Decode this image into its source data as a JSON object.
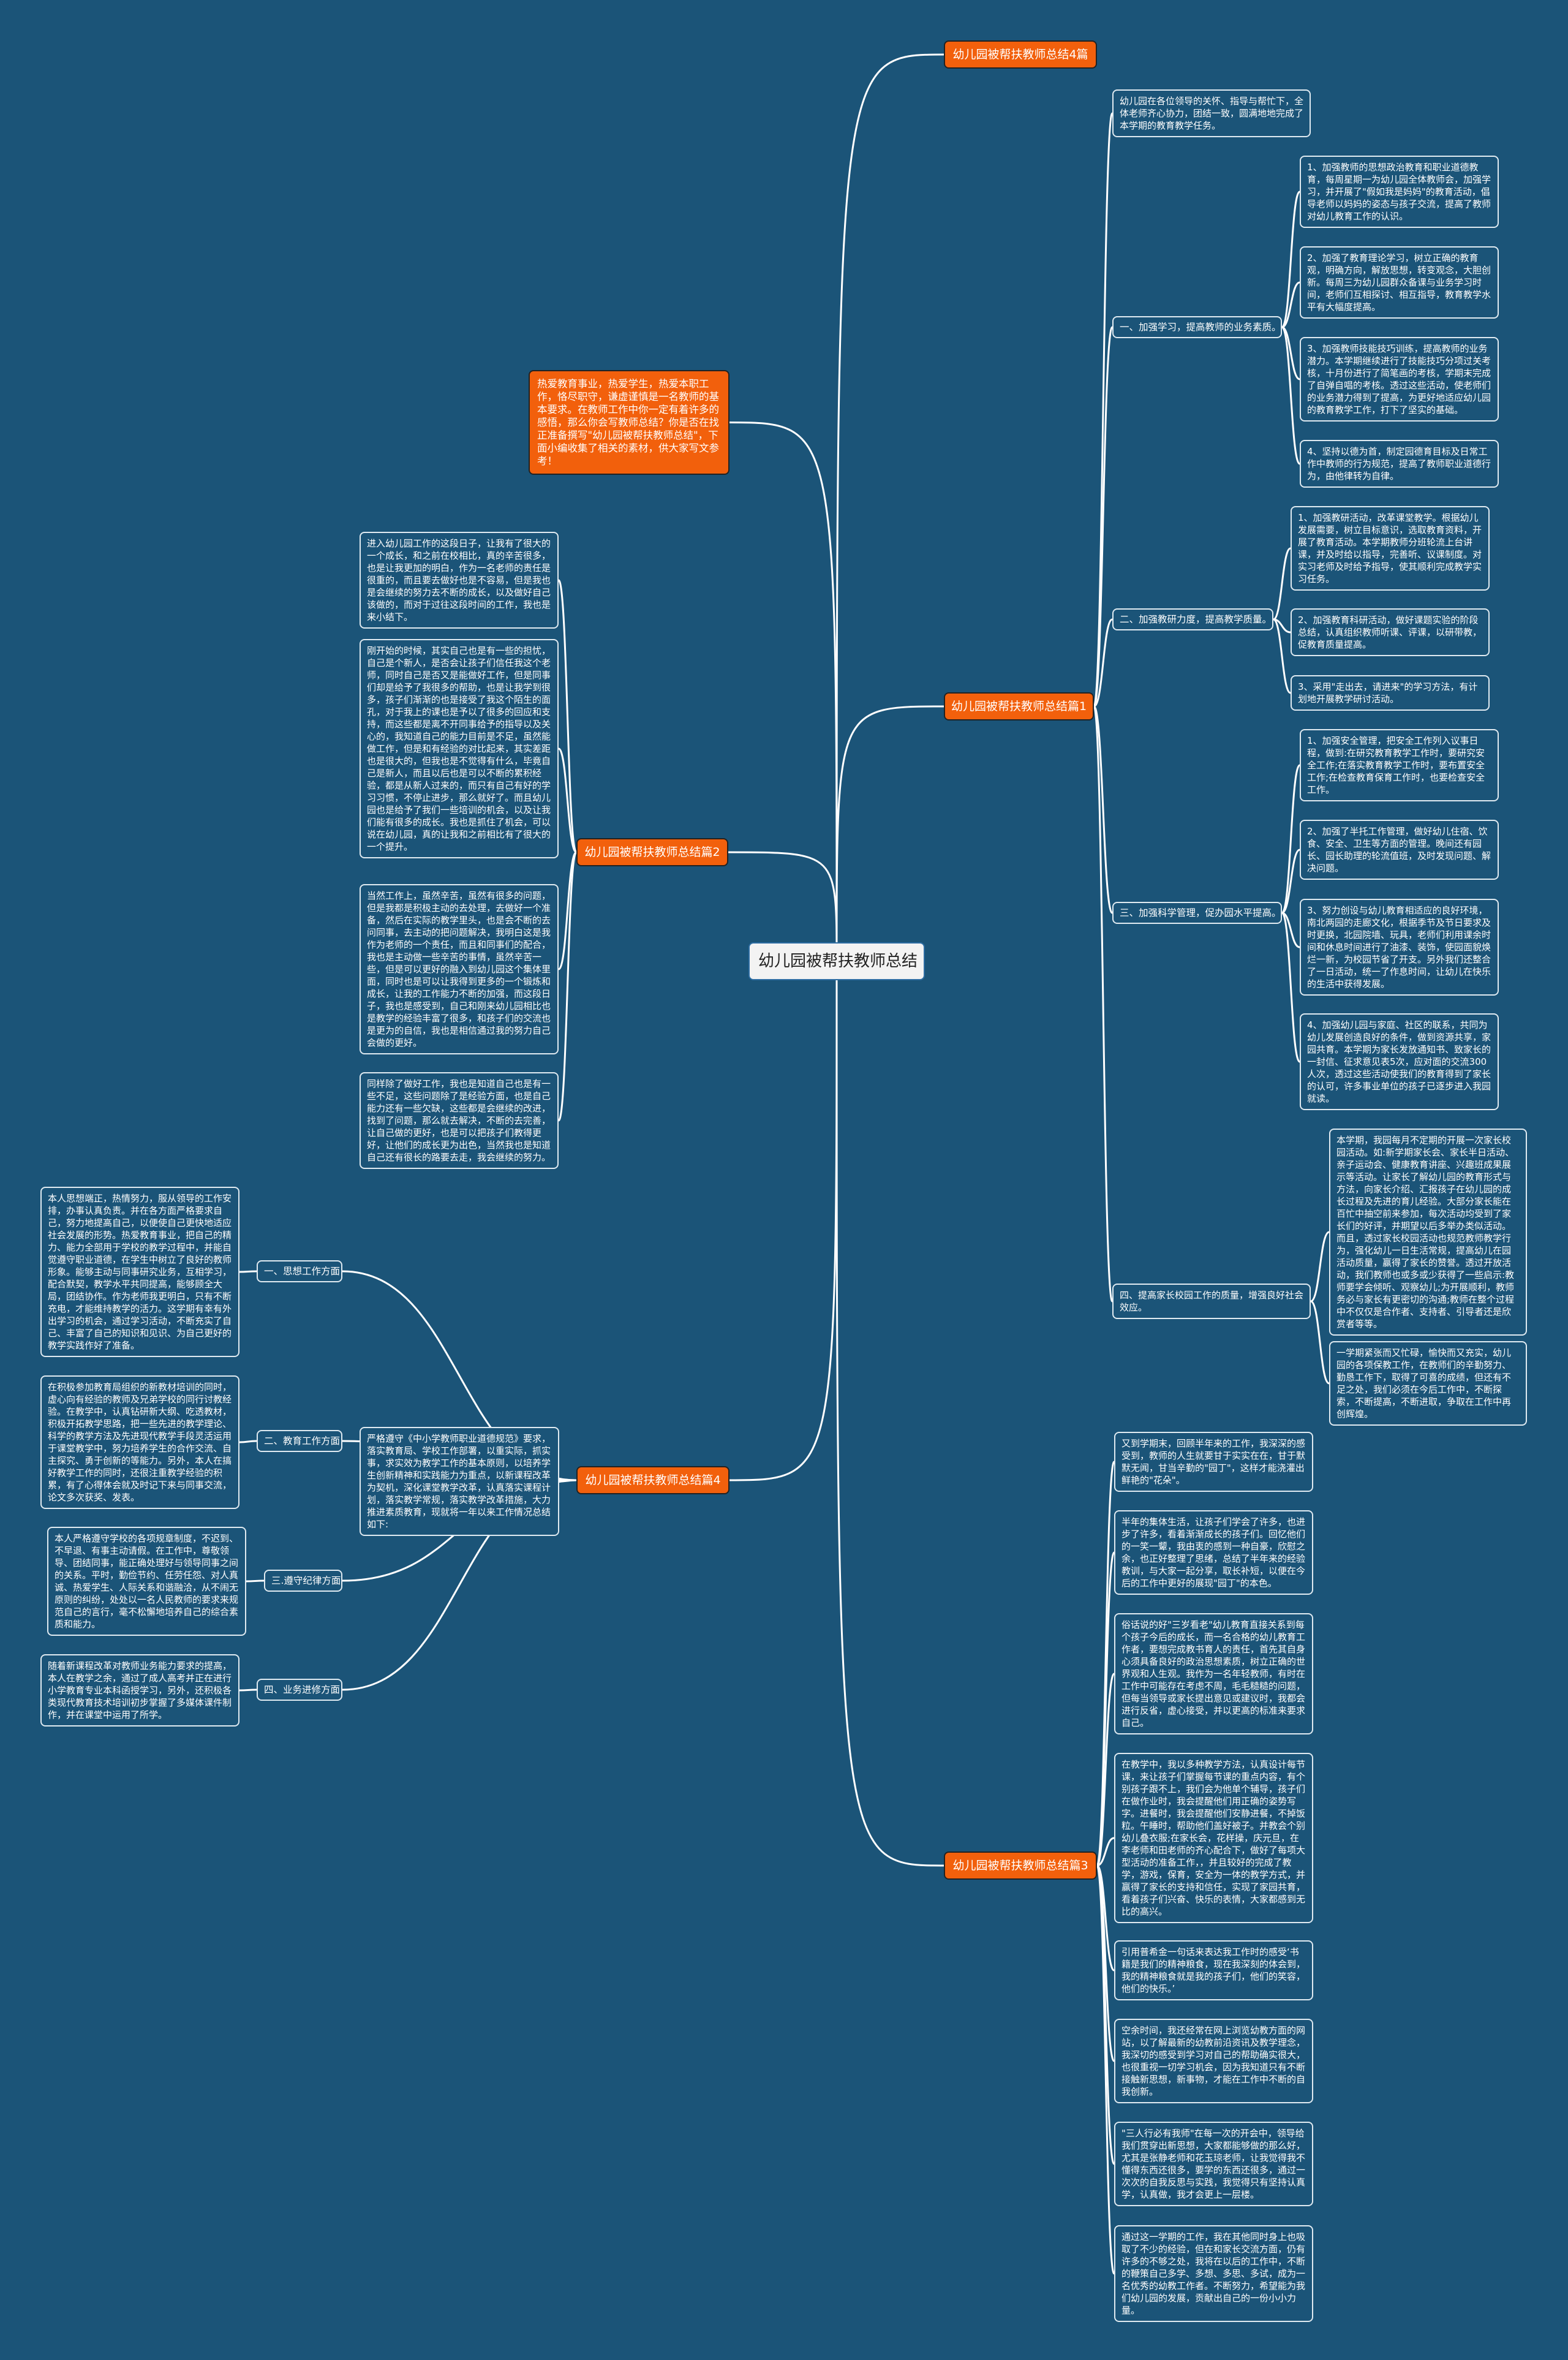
{
  "root": "幼儿园被帮扶教师总结",
  "intro": "热爱教育事业，热爱学生，热爱本职工作，恪尽职守，谦虚谨慎是一名教师的基本要求。在教师工作中你一定有着许多的感悟，那么你会写教师总结？你是否在找正准备撰写\"幼儿园被帮扶教师总结\"，下面小编收集了相关的素材，供大家写文参考！",
  "colors": {
    "background": "#1b5478",
    "branch": "#f2600c",
    "root": "#f3f3f3",
    "line": "#ffffff"
  },
  "b4pian": {
    "title": "幼儿园被帮扶教师总结4篇"
  },
  "p1": {
    "title": "幼儿园被帮扶教师总结篇1",
    "intro": "幼儿园在各位领导的关怀、指导与帮忙下，全体老师齐心协力，团结一致，圆满地地完成了本学期的教育教学任务。",
    "sections": [
      {
        "title": "一、加强学习，提高教师的业务素质。",
        "items": [
          "1、加强教师的思想政治教育和职业道德教育，每周星期一为幼儿园全体教师会，加强学习，并开展了\"假如我是妈妈\"的教育活动，倡导老师以妈妈的姿态与孩子交流，提高了教师对幼儿教育工作的认识。",
          "2、加强了教育理论学习，树立正确的教育观，明确方向，解放思想，转变观念，大胆创新。每周三为幼儿园群众备课与业务学习时间，老师们互相探讨、相互指导，教育教学水平有大幅度提高。",
          "3、加强教师技能技巧训练，提高教师的业务潜力。本学期继续进行了技能技巧分项过关考核，十月份进行了简笔画的考核，学期末完成了自弹自唱的考核。透过这些活动，使老师们的业务潜力得到了提高，为更好地适应幼儿园的教育教学工作，打下了坚实的基础。",
          "4、坚持以德为首，制定园德育目标及日常工作中教师的行为规范，提高了教师职业道德行为，由他律转为自律。"
        ]
      },
      {
        "title": "二、加强教研力度，提高教学质量。",
        "items": [
          "1、加强教研活动，改革课堂教学。根据幼儿发展需要，树立目标意识，选取教育资料，开展了教育活动。本学期教师分班轮流上台讲课，并及时给以指导，完善听、议课制度。对实习老师及时给予指导，使其顺利完成教学实习任务。",
          "2、加强教育科研活动，做好课题实验的阶段总结，认真组织教师听课、评课，以研带教，促教育质量提高。",
          "3、采用\"走出去，请进来\"的学习方法，有计划地开展教学研讨活动。"
        ]
      },
      {
        "title": "三、加强科学管理，促办园水平提高。",
        "items": [
          "1、加强安全管理，把安全工作列入议事日程，做到:在研究教育教学工作时，要研究安全工作;在落实教育教学工作时，要布置安全工作;在检查教育保育工作时，也要检查安全工作。",
          "2、加强了半托工作管理，做好幼儿住宿、饮食、安全、卫生等方面的管理。晚间还有园长、园长助理的轮流值班，及时发现问题、解决问题。",
          "3、努力创设与幼儿教育相适应的良好环境，南北两园的走廊文化，根据季节及节日要求及时更换，北园院墙、玩具，老师们利用课余时间和休息时间进行了油漆、装饰，使园面貌焕烂一新，为校园节省了开支。另外我们还整合了一日活动，统一了作息时间，让幼儿在快乐的生活中获得发展。",
          "4、加强幼儿园与家庭、社区的联系，共同为幼儿发展创造良好的条件，做到资源共享，家园共育。本学期为家长发放通知书、致家长的一封信、征求意见表5次，应对面的交流300人次，透过这些活动使我们的教育得到了家长的认可，许多事业单位的孩子已逐步进入我园就读。"
        ]
      },
      {
        "title": "四、提高家长校园工作的质量，增强良好社会效应。",
        "items": [
          "本学期，我园每月不定期的开展一次家长校园活动。如:新学期家长会、家长半日活动、亲子运动会、健康教育讲座、兴趣班成果展示等活动。让家长了解幼儿园的教育形式与方法，向家长介绍、汇报孩子在幼儿园的成长过程及先进的育儿经验。大部分家长能在百忙中抽空前来参加，每次活动均受到了家长们的好评，并期望以后多举办类似活动。而且，透过家长校园活动也规范教师教学行为，强化幼儿一日生活常规，提高幼儿在园活动质量，赢得了家长的赞誉。透过开放活动，我们教师也或多或少获得了一些启示:教师要学会倾听、观察幼儿;为开展顺利，教师务必与家长有更密切的沟通;教师在整个过程中不仅仅是合作者、支持者、引导者还是欣赏者等等。",
          "一学期紧张而又忙碌，愉快而又充实，幼儿园的各项保教工作，在教师们的辛勤努力、勤恳工作下，取得了可喜的成绩，但还有不足之处，我们必须在今后工作中，不断探索，不断提高，不断进取，争取在工作中再创辉煌。"
        ]
      }
    ]
  },
  "p2": {
    "title": "幼儿园被帮扶教师总结篇2",
    "paragraphs": [
      "进入幼儿园工作的这段日子，让我有了很大的一个成长，和之前在校相比，真的辛苦很多，也是让我更加的明白，作为一名老师的责任是很重的，而且要去做好也是不容易，但是我也是会继续的努力去不断的成长，以及做好自己该做的，而对于过往这段时间的工作，我也是来小结下。",
      "刚开始的时候，其实自己也是有一些的担忧，自己是个新人，是否会让孩子们信任我这个老师，同时自己是否又是能做好工作，但是同事们却是给予了我很多的帮助，也是让我学到很多，孩子们渐渐的也是接受了我这个陌生的面孔，对于我上的课也是予以了很多的回应和支持，而这些都是离不开同事给予的指导以及关心的，我知道自己的能力目前是不足，虽然能做工作，但是和有经验的对比起来，其实差距也是很大的，但我也是不觉得有什么，毕竟自己是新人，而且以后也是可以不断的累积经验，都是从新人过来的，而只有自己有好的学习习惯，不停止进步，那么就好了。而且幼儿园也是给予了我们一些培训的机会，以及让我们能有很多的成长。我也是抓住了机会，可以说在幼儿园，真的让我和之前相比有了很大的一个提升。",
      "当然工作上，虽然辛苦，虽然有很多的问题，但是我都是积极主动的去处理，去做好一个准备，然后在实际的教学里头，也是会不断的去问同事，去主动的把问题解决，我明白这是我作为老师的一个责任，而且和同事们的配合，我也是主动做一些辛苦的事情，虽然辛苦一些，但是可以更好的融入到幼儿园这个集体里面，同时也是可以让我得到更多的一个锻炼和成长，让我的工作能力不断的加强，而这段日子，我也是感受到，自己和刚来幼儿园相比也是教学的经验丰富了很多，和孩子们的交流也是更为的自信，我也是相信通过我的努力自己会做的更好。",
      "同样除了做好工作，我也是知道自己也是有一些不足，这些问题除了是经验方面，也是自己能力还有一些欠缺，这些都是会继续的改进，找到了问题，那么就去解决，不断的去完善，让自己做的更好，也是可以把孩子们教得更好，让他们的成长更为出色，当然我也是知道自己还有很长的路要去走，我会继续的努力。"
    ]
  },
  "p3": {
    "title": "幼儿园被帮扶教师总结篇3",
    "paragraphs": [
      "又到学期末，回顾半年来的工作，我深深的感受到，教师的人生就要甘于实实在在，甘于默默无闻，甘当辛勤的\"园丁\"，这样才能浇灌出鲜艳的\"花朵\"。",
      "半年的集体生活，让孩子们学会了许多，也进步了许多，看着渐渐成长的孩子们。回忆他们的一笑一颦，我由衷的感到一种自豪，欣慰之余，也正好整理了思绪，总结了半年来的经验教训，与大家一起分享，取长补短，以便在今后的工作中更好的展现\"园丁\"的本色。",
      "俗话说的好\"三岁看老\"幼儿教育直接关系到每个孩子今后的成长，而一名合格的幼儿教育工作者，要想完成教书育人的责任，首先其自身心须具备良好的政治思想素质，树立正确的世界观和人生观。我作为一名年轻教师，有时在工作中可能存在考虑不周，毛毛糙糙的问题，但每当领导或家长提出意见或建议时，我都会进行反省，虚心接受，并以更高的标准来要求自己。",
      "在教学中，我以多种教学方法，认真设计每节课，来让孩子们掌握每节课的重点内容，有个别孩子跟不上，我们会为他单个辅导，孩子们在做作业时，我会提醒他们用正确的姿势写字。进餐时，我会提醒他们安静进餐，不掉饭粒。午睡时，帮助他们盖好被子。并教会个别幼儿叠衣服;在家长会，花样操，庆元旦，在李老师和田老师的齐心配合下，做好了每项大型活动的准备工作，，并且较好的完成了教学，游戏，保育，安全为一体的教学方式，并赢得了家长的支持和信任，实现了家园共育，看着孩子们兴奋、快乐的表情，大家都感到无比的高兴。",
      "引用普希金一句话来表达我工作时的感受‘书籍是我们的精神粮食，现在我深刻的体会到，我的精神粮食就是我的孩子们，他们的笑容，他们的快乐。’",
      "空余时间，我还经常在网上浏览幼教方面的网站，以了解最新的幼教前沿资讯及教学理念，我深切的感受到学习对自己的帮助确实很大，也很重视一切学习机会，因为我知道只有不断接触新思想，新事物，才能在工作中不断的自我创新。",
      "\"三人行必有我师\"在每一次的开会中，领导给我们贯穿出新思想，大家都能够做的那么好，尤其是张静老师和花玉琼老师，让我觉得我不懂得东西还很多，要学的东西还很多，通过一次次的自我反思与实践，我觉得只有坚持认真学，认真做，我才会更上一层楼。",
      "通过这一学期的工作，我在其他同时身上也吸取了不少的经验，但在和家长交流方面，仍有许多的不够之处，我将在以后的工作中，不断的鞭策自己多学、多想、多思、多试，成为一名优秀的幼教工作者。不断努力，希望能为我们幼儿园的发展，贡献出自己的一份小小力量。"
    ]
  },
  "p4": {
    "title": "幼儿园被帮扶教师总结篇4",
    "intro": "严格遵守《中小学教师职业道德规范》要求，落实教育局、学校工作部署，以重实际，抓实事，求实效为教学工作的基本原则，以培养学生创新精神和实践能力为重点，以新课程改革为契机，深化课堂教学改革，认真落实课程计划，落实教学常规，落实教学改革措施，大力推进素质教育，现就将一年以来工作情况总结如下:",
    "sections": [
      {
        "title": "一、思想工作方面",
        "text": "本人思想端正，热情努力，服从领导的工作安排，办事认真负责。并在各方面严格要求自己，努力地提高自己，以便使自己更快地适应社会发展的形势。热爱教育事业，把自己的精力、能力全部用于学校的教学过程中，并能自觉遵守职业道德，在学生中树立了良好的教师形象。能够主动与同事研究业务，互相学习，配合默契，教学水平共同提高，能够顾全大局，团结协作。作为老师我更明白，只有不断充电，才能维持教学的活力。这学期有幸有外出学习的机会，通过学习活动，不断充实了自己、丰富了自己的知识和见识、为自己更好的教学实践作好了准备。"
      },
      {
        "title": "二、教育工作方面",
        "text": "在积极参加教育局组织的新教材培训的同时，虚心向有经验的教师及兄弟学校的同行讨教经验。在教学中，认真钻研新大纲、吃透教材，积极开拓教学思路，把一些先进的教学理论、科学的教学方法及先进现代教学手段灵活运用于课堂教学中，努力培养学生的合作交流、自主探究、勇于创新的等能力。另外，本人在搞好教学工作的同时，还很注重教学经验的积累，有了心得体会就及时记下来与同事交流，论文多次获奖、发表。"
      },
      {
        "title": "三.遵守纪律方面",
        "text": "本人严格遵守学校的各项规章制度，不迟到、不早退、有事主动请假。在工作中，尊敬领导、团结同事，能正确处理好与领导同事之间的关系。平时，勤俭节约、任劳任怨、对人真诚、热爱学生、人际关系和谐融洽，从不闹无原则的纠纷，处处以一名人民教师的要求来规范自己的言行，毫不松懈地培养自己的综合素质和能力。"
      },
      {
        "title": "四、业务进修方面",
        "text": "随着新课程改革对教师业务能力要求的提高，本人在教学之余，通过了成人高考并正在进行小学教育专业本科函授学习，另外，还积极各类现代教育技术培训初步掌握了多媒体课件制作，并在课堂中运用了所学。"
      }
    ]
  }
}
